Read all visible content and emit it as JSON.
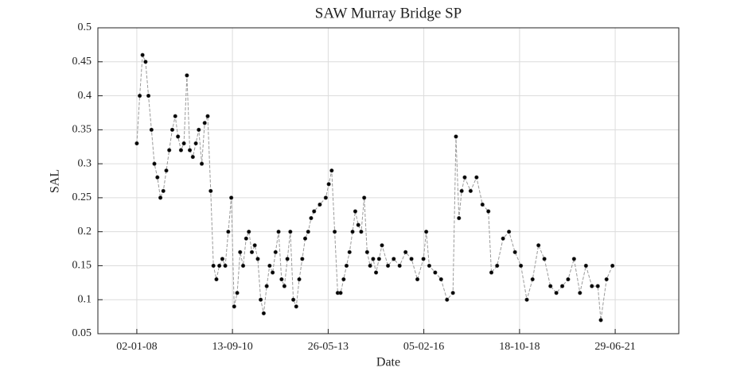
{
  "chart_data": {
    "type": "line",
    "title": "SAW Murray Bridge SP",
    "x_label": "Date",
    "y_label": "SAL",
    "x": [
      "2008-01-02",
      "2008-02-01",
      "2008-03-01",
      "2008-04-01",
      "2008-05-01",
      "2008-06-01",
      "2008-07-01",
      "2008-08-01",
      "2008-09-01",
      "2008-10-01",
      "2008-11-01",
      "2008-12-01",
      "2009-01-01",
      "2009-02-01",
      "2009-03-01",
      "2009-04-01",
      "2009-05-01",
      "2009-06-01",
      "2009-07-01",
      "2009-08-01",
      "2009-09-01",
      "2009-10-01",
      "2009-11-01",
      "2009-12-01",
      "2010-01-01",
      "2010-02-01",
      "2010-03-01",
      "2010-04-01",
      "2010-05-01",
      "2010-06-01",
      "2010-07-01",
      "2010-08-01",
      "2010-09-01",
      "2010-10-01",
      "2010-11-01",
      "2010-12-01",
      "2011-01-01",
      "2011-02-01",
      "2011-03-01",
      "2011-04-01",
      "2011-05-01",
      "2011-06-01",
      "2011-07-01",
      "2011-08-01",
      "2011-09-01",
      "2011-10-01",
      "2011-11-01",
      "2011-12-01",
      "2012-01-01",
      "2012-02-01",
      "2012-03-01",
      "2012-04-01",
      "2012-05-01",
      "2012-06-01",
      "2012-07-01",
      "2012-08-01",
      "2012-09-01",
      "2012-10-01",
      "2012-11-01",
      "2012-12-01",
      "2013-01-01",
      "2013-03-01",
      "2013-05-01",
      "2013-06-01",
      "2013-07-01",
      "2013-08-01",
      "2013-09-01",
      "2013-10-01",
      "2013-11-01",
      "2013-12-01",
      "2014-01-01",
      "2014-02-01",
      "2014-03-01",
      "2014-04-01",
      "2014-05-01",
      "2014-06-01",
      "2014-07-01",
      "2014-08-01",
      "2014-09-01",
      "2014-10-01",
      "2014-11-01",
      "2014-12-01",
      "2015-02-01",
      "2015-04-01",
      "2015-06-01",
      "2015-08-01",
      "2015-10-01",
      "2015-12-01",
      "2016-02-01",
      "2016-03-01",
      "2016-04-01",
      "2016-06-01",
      "2016-08-01",
      "2016-10-01",
      "2016-12-01",
      "2017-01-01",
      "2017-02-01",
      "2017-03-01",
      "2017-04-01",
      "2017-06-01",
      "2017-08-01",
      "2017-10-01",
      "2017-12-01",
      "2018-01-01",
      "2018-03-01",
      "2018-05-01",
      "2018-07-01",
      "2018-09-01",
      "2018-11-01",
      "2019-01-01",
      "2019-03-01",
      "2019-05-01",
      "2019-07-01",
      "2019-09-01",
      "2019-11-01",
      "2020-01-01",
      "2020-03-01",
      "2020-05-01",
      "2020-07-01",
      "2020-09-01",
      "2020-11-01",
      "2021-01-01",
      "2021-02-01",
      "2021-04-01",
      "2021-06-01"
    ],
    "values": [
      0.33,
      0.4,
      0.46,
      0.45,
      0.4,
      0.35,
      0.3,
      0.28,
      0.25,
      0.26,
      0.29,
      0.32,
      0.35,
      0.37,
      0.34,
      0.32,
      0.33,
      0.43,
      0.32,
      0.31,
      0.33,
      0.35,
      0.3,
      0.36,
      0.37,
      0.26,
      0.15,
      0.13,
      0.15,
      0.16,
      0.15,
      0.2,
      0.25,
      0.09,
      0.11,
      0.17,
      0.15,
      0.19,
      0.2,
      0.17,
      0.18,
      0.16,
      0.1,
      0.08,
      0.12,
      0.15,
      0.14,
      0.17,
      0.2,
      0.13,
      0.12,
      0.16,
      0.2,
      0.1,
      0.09,
      0.13,
      0.16,
      0.19,
      0.2,
      0.22,
      0.23,
      0.24,
      0.25,
      0.27,
      0.29,
      0.2,
      0.11,
      0.11,
      0.13,
      0.15,
      0.17,
      0.2,
      0.23,
      0.21,
      0.2,
      0.25,
      0.17,
      0.15,
      0.16,
      0.14,
      0.16,
      0.18,
      0.15,
      0.16,
      0.15,
      0.17,
      0.16,
      0.13,
      0.16,
      0.2,
      0.15,
      0.14,
      0.13,
      0.1,
      0.11,
      0.34,
      0.22,
      0.26,
      0.28,
      0.26,
      0.28,
      0.24,
      0.23,
      0.14,
      0.15,
      0.19,
      0.2,
      0.17,
      0.15,
      0.1,
      0.13,
      0.18,
      0.16,
      0.12,
      0.11,
      0.12,
      0.13,
      0.16,
      0.11,
      0.15,
      0.12,
      0.12,
      0.07,
      0.13,
      0.15
    ],
    "color": "#000000",
    "line_color": "#9a9a9a",
    "xlim": [
      "2006-11-27",
      "2023-04-15"
    ],
    "xticks": [
      {
        "value": "2008-01-02",
        "label": "02-01-08"
      },
      {
        "value": "2010-09-13",
        "label": "13-09-10"
      },
      {
        "value": "2013-05-26",
        "label": "26-05-13"
      },
      {
        "value": "2016-02-05",
        "label": "05-02-16"
      },
      {
        "value": "2018-10-18",
        "label": "18-10-18"
      },
      {
        "value": "2021-06-29",
        "label": "29-06-21"
      }
    ],
    "ylim": [
      0.05,
      0.5
    ],
    "yticks": [
      0.05,
      0.1,
      0.15,
      0.2,
      0.25,
      0.3,
      0.35,
      0.4,
      0.45,
      0.5
    ],
    "grid": true
  }
}
